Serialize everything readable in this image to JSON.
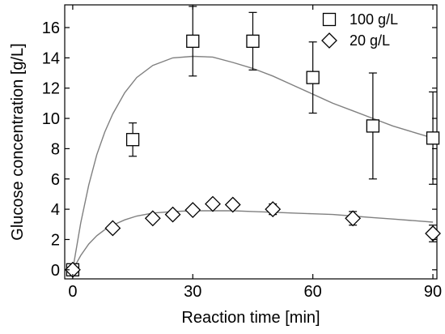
{
  "chart_data": {
    "type": "scatter",
    "title": "",
    "xlabel": "Reaction time [min]",
    "ylabel": "Glucose concentration [g/L]",
    "xlim": [
      -2,
      91
    ],
    "ylim": [
      -0.6,
      17.5
    ],
    "xticks": [
      0,
      30,
      60,
      90
    ],
    "yticks": [
      0,
      2,
      4,
      6,
      8,
      10,
      12,
      14,
      16
    ],
    "legend_position": "top-right",
    "series": [
      {
        "name": "100 g/L",
        "marker": "square",
        "x": [
          0,
          15,
          30,
          45,
          60,
          75,
          90
        ],
        "y": [
          0.0,
          8.6,
          15.1,
          15.1,
          12.7,
          9.5,
          8.7
        ],
        "error": [
          0.0,
          1.1,
          2.3,
          1.9,
          2.35,
          3.5,
          3.05
        ]
      },
      {
        "name": "20 g/L",
        "marker": "diamond",
        "x": [
          0,
          10,
          20,
          25,
          30,
          35,
          40,
          50,
          70,
          90
        ],
        "y": [
          0.0,
          2.75,
          3.4,
          3.65,
          3.95,
          4.35,
          4.3,
          4.0,
          3.4,
          2.4
        ],
        "error": [
          0.0,
          0.0,
          0.0,
          0.0,
          0.0,
          0.0,
          0.0,
          0.35,
          0.45,
          0.55
        ]
      }
    ],
    "fit_curves": [
      {
        "series": "100 g/L",
        "x": [
          0,
          2,
          4,
          6,
          8,
          10,
          13,
          16,
          20,
          25,
          30,
          35,
          40,
          45,
          50,
          55,
          60,
          65,
          70,
          75,
          80,
          85,
          90
        ],
        "y": [
          0.0,
          3.1,
          5.6,
          7.6,
          9.1,
          10.3,
          11.7,
          12.7,
          13.5,
          14.0,
          14.1,
          14.05,
          13.7,
          13.3,
          12.8,
          12.2,
          11.6,
          11.0,
          10.5,
          10.0,
          9.5,
          9.1,
          8.7
        ]
      },
      {
        "series": "20 g/L",
        "x": [
          0,
          2,
          4,
          6,
          8,
          10,
          13,
          16,
          20,
          25,
          30,
          35,
          40,
          45,
          50,
          55,
          60,
          65,
          70,
          75,
          80,
          85,
          90
        ],
        "y": [
          0.0,
          0.95,
          1.7,
          2.25,
          2.65,
          2.95,
          3.3,
          3.55,
          3.75,
          3.85,
          3.9,
          3.9,
          3.9,
          3.85,
          3.8,
          3.75,
          3.7,
          3.65,
          3.55,
          3.45,
          3.35,
          3.25,
          3.15
        ]
      }
    ],
    "colors": {
      "markers": "#000000",
      "fit_line": "#808080",
      "axes": "#000000"
    }
  }
}
